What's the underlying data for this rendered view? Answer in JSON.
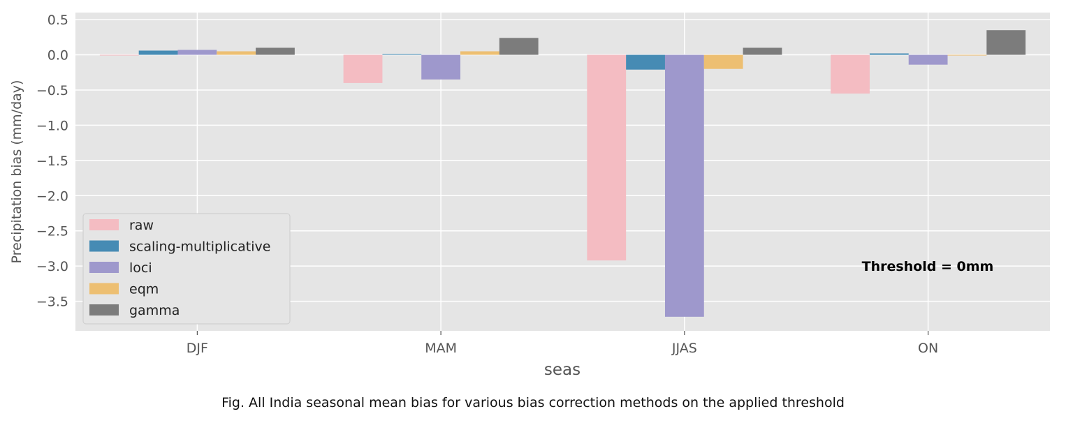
{
  "chart_data": {
    "type": "bar",
    "xlabel": "seas",
    "ylabel": "Precipitation bias (mm/day)",
    "categories": [
      "DJF",
      "MAM",
      "JJAS",
      "ON"
    ],
    "series": [
      {
        "name": "raw",
        "color": "#F4BCC2",
        "values": [
          -0.01,
          -0.4,
          -2.92,
          -0.55
        ]
      },
      {
        "name": "scaling-multiplicative",
        "color": "#468BB4",
        "values": [
          0.06,
          0.01,
          -0.21,
          0.02
        ]
      },
      {
        "name": "loci",
        "color": "#9E98CC",
        "values": [
          0.07,
          -0.35,
          -3.72,
          -0.14
        ]
      },
      {
        "name": "eqm",
        "color": "#EDBF72",
        "values": [
          0.05,
          0.05,
          -0.2,
          -0.01
        ]
      },
      {
        "name": "gamma",
        "color": "#7C7C7C",
        "values": [
          0.1,
          0.24,
          0.1,
          0.35
        ]
      }
    ],
    "ylim": [
      -3.92,
      0.6
    ],
    "yticks": [
      0.5,
      0.0,
      -0.5,
      -1.0,
      -1.5,
      -2.0,
      -2.5,
      -3.0,
      -3.5
    ],
    "ytick_labels": [
      "0.5",
      "0.0",
      "−0.5",
      "−1.0",
      "−1.5",
      "−2.0",
      "−2.5",
      "−3.0",
      "−3.5"
    ],
    "grid": true,
    "legend_position": "lower-left",
    "annotation": "Threshold = 0mm"
  },
  "caption": "Fig. All India seasonal mean bias for various bias correction methods on the applied threshold"
}
